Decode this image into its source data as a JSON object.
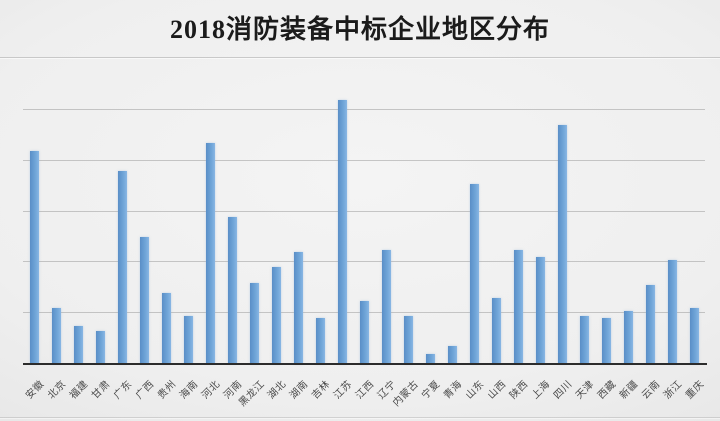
{
  "title": "2018消防装备中标企业地区分布",
  "colors": {
    "bar_main": "#6ba0d6",
    "bar_edge_dark": "#5a8ec6",
    "bar_edge_light": "#89b7e4",
    "gridline": "#9f9f9f",
    "axis_line": "#2c2c2c",
    "label_text": "#4a4a4a",
    "title_text": "#1b1b1b",
    "background": "#ececec"
  },
  "chart_data": {
    "type": "bar",
    "title": "2018消防装备中标企业地区分布",
    "xlabel": "",
    "ylabel": "",
    "legend": "none",
    "grid": "horizontal",
    "y_axis_tick_labels_visible": false,
    "x_label_rotation_deg": 45,
    "ylim": [
      0,
      55
    ],
    "gridline_interval": 10,
    "gridline_values": [
      10,
      20,
      30,
      40,
      50
    ],
    "categories": [
      "安徽",
      "北京",
      "福建",
      "甘肃",
      "广东",
      "广西",
      "贵州",
      "海南",
      "河北",
      "河南",
      "黑龙江",
      "湖北",
      "湖南",
      "吉林",
      "江苏",
      "江西",
      "辽宁",
      "内蒙古",
      "宁夏",
      "青海",
      "山东",
      "山西",
      "陕西",
      "上海",
      "四川",
      "天津",
      "西藏",
      "新疆",
      "云南",
      "浙江",
      "重庆"
    ],
    "values": [
      42,
      11,
      7.5,
      6.5,
      38,
      25,
      14,
      9.5,
      43.5,
      29,
      16,
      19,
      22,
      9,
      52,
      12.5,
      22.5,
      9.5,
      2,
      3.5,
      35.5,
      13,
      22.5,
      21,
      47,
      9.5,
      9,
      10.5,
      15.5,
      20.5,
      11
    ]
  }
}
